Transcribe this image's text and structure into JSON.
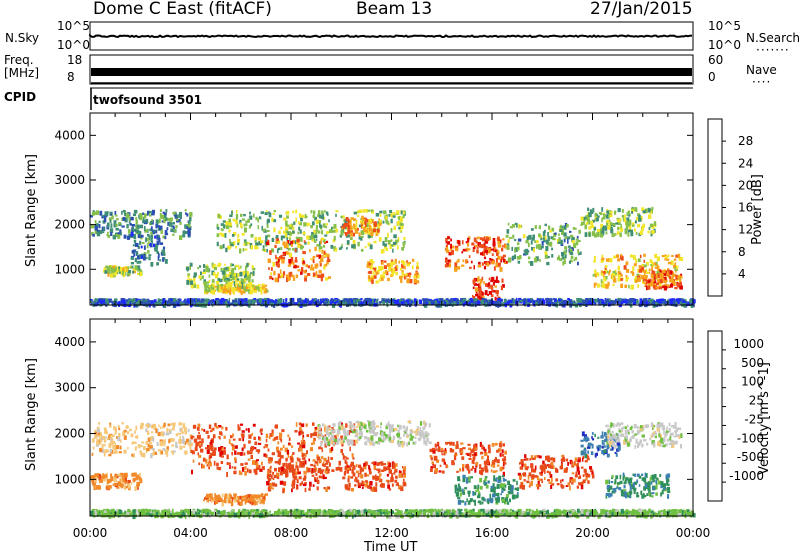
{
  "header": {
    "station": "Dome C East (fitACF)",
    "beam": "Beam 13",
    "date": "27/Jan/2015"
  },
  "status_panels": {
    "nsky_label": "N.Sky",
    "nsky_ticks": [
      "10^5",
      "10^0"
    ],
    "nsearch_label": "N.Search",
    "nsearch_ticks": [
      "10^5",
      "10^0"
    ],
    "freq_label": "Freq.",
    "freq_unit": "[MHz]",
    "freq_ticks": [
      "18",
      "8"
    ],
    "nave_label": "Nave",
    "nave_ticks": [
      "60",
      "0"
    ],
    "cpid_label": "CPID",
    "cpid_value": "twofsound 3501"
  },
  "chart_data": [
    {
      "type": "heatmap",
      "name_key": "power",
      "ylabel": "Slant Range [km]",
      "ylim": [
        200,
        4500
      ],
      "yticks": [
        1000,
        2000,
        3000,
        4000
      ],
      "xlim": [
        0,
        24
      ],
      "colorbar_label": "Power [dB]",
      "colorbar_ticks": [
        "4",
        "8",
        "12",
        "16",
        "20",
        "24",
        "28"
      ],
      "colorbar_range": [
        0,
        30
      ],
      "colors": [
        "#1e28ff",
        "#2a4fb0",
        "#3f8f74",
        "#86c04a",
        "#f3e52a",
        "#f7a11c",
        "#ef4c1b",
        "#e00000"
      ],
      "features": [
        {
          "t0": 0.5,
          "t1": 2.0,
          "r": 1000,
          "h": 100,
          "v": 16
        },
        {
          "t0": 0.0,
          "t1": 4.0,
          "r": 2050,
          "h": 300,
          "v": 10
        },
        {
          "t0": 1.6,
          "t1": 3.0,
          "r": 1500,
          "h": 400,
          "v": 8
        },
        {
          "t0": 4.5,
          "t1": 7.0,
          "r": 600,
          "h": 80,
          "v": 18
        },
        {
          "t0": 3.8,
          "t1": 6.5,
          "r": 900,
          "h": 250,
          "v": 14
        },
        {
          "t0": 5.0,
          "t1": 12.5,
          "r": 1900,
          "h": 450,
          "v": 14
        },
        {
          "t0": 7.0,
          "t1": 9.5,
          "r": 1250,
          "h": 450,
          "v": 24
        },
        {
          "t0": 10.0,
          "t1": 11.5,
          "r": 2000,
          "h": 200,
          "v": 22
        },
        {
          "t0": 11.0,
          "t1": 13.0,
          "r": 1000,
          "h": 250,
          "v": 22
        },
        {
          "t0": 14.0,
          "t1": 16.5,
          "r": 1400,
          "h": 350,
          "v": 26
        },
        {
          "t0": 15.2,
          "t1": 16.4,
          "r": 600,
          "h": 250,
          "v": 28
        },
        {
          "t0": 16.5,
          "t1": 19.5,
          "r": 1600,
          "h": 450,
          "v": 12
        },
        {
          "t0": 19.5,
          "t1": 22.5,
          "r": 2100,
          "h": 300,
          "v": 14
        },
        {
          "t0": 20.0,
          "t1": 23.5,
          "r": 1000,
          "h": 350,
          "v": 20
        },
        {
          "t0": 22.0,
          "t1": 23.5,
          "r": 800,
          "h": 200,
          "v": 26
        },
        {
          "t0": 0.0,
          "t1": 24.0,
          "r": 300,
          "h": 60,
          "v": 6
        }
      ]
    },
    {
      "type": "heatmap",
      "name_key": "velocity",
      "xlabel": "Time UT",
      "ylabel": "Slant Range [km]",
      "ylim": [
        200,
        4500
      ],
      "yticks": [
        1000,
        2000,
        3000,
        4000
      ],
      "xlim": [
        0,
        24
      ],
      "xticks": [
        "00:00",
        "04:00",
        "08:00",
        "12:00",
        "16:00",
        "20:00",
        "00:00"
      ],
      "colorbar_label": "Velocity [m s^-1]",
      "colorbar_ticks": [
        "1000",
        "500",
        "100",
        "25",
        "-25",
        "-100",
        "-500",
        "-1000"
      ],
      "colors": [
        "#2030c0",
        "#3c7fb0",
        "#2f8f5a",
        "#6fc040",
        "#c8c8c8",
        "#f5c87a",
        "#f28a2a",
        "#e84a1a",
        "#e00000"
      ],
      "features": [
        {
          "t0": 0.0,
          "t1": 2.0,
          "r": 1000,
          "h": 150,
          "c": 6
        },
        {
          "t0": 0.0,
          "t1": 4.0,
          "r": 1900,
          "h": 350,
          "c": 5
        },
        {
          "t0": 4.0,
          "t1": 10.5,
          "r": 1700,
          "h": 550,
          "c": 7
        },
        {
          "t0": 7.0,
          "t1": 9.5,
          "r": 1200,
          "h": 400,
          "c": 7
        },
        {
          "t0": 4.5,
          "t1": 7.0,
          "r": 600,
          "h": 100,
          "c": 6
        },
        {
          "t0": 9.0,
          "t1": 13.5,
          "r": 2050,
          "h": 250,
          "c": 4
        },
        {
          "t0": 10.0,
          "t1": 12.5,
          "r": 1100,
          "h": 300,
          "c": 7
        },
        {
          "t0": 13.5,
          "t1": 16.5,
          "r": 1500,
          "h": 350,
          "c": 7
        },
        {
          "t0": 14.5,
          "t1": 17.0,
          "r": 800,
          "h": 300,
          "c": 2
        },
        {
          "t0": 17.0,
          "t1": 20.0,
          "r": 1200,
          "h": 350,
          "c": 7
        },
        {
          "t0": 19.5,
          "t1": 21.0,
          "r": 1800,
          "h": 250,
          "c": 1
        },
        {
          "t0": 20.5,
          "t1": 23.5,
          "r": 2000,
          "h": 250,
          "c": 4
        },
        {
          "t0": 20.5,
          "t1": 23.0,
          "r": 900,
          "h": 250,
          "c": 2
        },
        {
          "t0": 0.0,
          "t1": 24.0,
          "r": 300,
          "h": 60,
          "c": 3
        }
      ]
    }
  ]
}
